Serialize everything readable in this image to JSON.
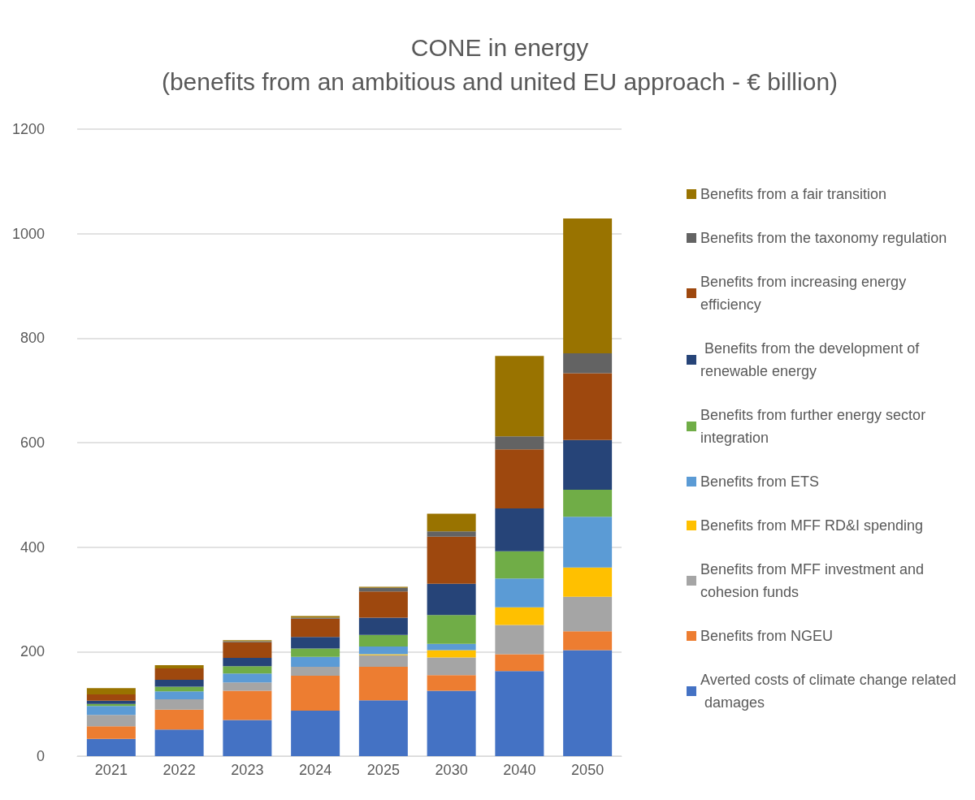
{
  "chart_data": {
    "type": "bar",
    "stacked": true,
    "title": "CONE in energy",
    "subtitle": "(benefits from an ambitious and united EU approach - € billion)",
    "categories": [
      "2021",
      "2022",
      "2023",
      "2024",
      "2025",
      "2030",
      "2040",
      "2050"
    ],
    "series": [
      {
        "name": "Averted costs of climate change related damages",
        "color": "#4472c4",
        "values": [
          33,
          51,
          69,
          87,
          107,
          125,
          163,
          203
        ]
      },
      {
        "name": "Benefits from NGEU",
        "color": "#ed7d31",
        "values": [
          24,
          38,
          56,
          67,
          64,
          30,
          32,
          36
        ]
      },
      {
        "name": "Benefits from MFF investment and cohesion funds",
        "color": "#a5a5a5",
        "values": [
          22,
          20,
          16,
          17,
          22,
          34,
          56,
          66
        ]
      },
      {
        "name": "Benefits from MFF RD&I spending",
        "color": "#ffc000",
        "values": [
          0,
          0,
          0,
          0,
          2,
          14,
          34,
          56
        ]
      },
      {
        "name": "Benefits from ETS",
        "color": "#5b9bd5",
        "values": [
          17,
          15,
          17,
          19,
          15,
          12,
          55,
          97
        ]
      },
      {
        "name": "Benefits from further energy sector integration",
        "color": "#70ad47",
        "values": [
          4,
          9,
          14,
          16,
          22,
          55,
          52,
          52
        ]
      },
      {
        "name": " Benefits from the development of renewable energy",
        "color": "#264478",
        "values": [
          6,
          13,
          16,
          22,
          33,
          60,
          82,
          95
        ]
      },
      {
        "name": "Benefits from increasing energy efficiency",
        "color": "#9e480e",
        "values": [
          12,
          22,
          30,
          35,
          50,
          90,
          113,
          128
        ]
      },
      {
        "name": "Benefits from the taxonomy regulation",
        "color": "#636363",
        "values": [
          0,
          0,
          2,
          2,
          7,
          10,
          25,
          38
        ]
      },
      {
        "name": "Benefits from a fair transition",
        "color": "#997300",
        "values": [
          12,
          6,
          2,
          3,
          2,
          34,
          154,
          258
        ]
      }
    ],
    "ylim": [
      0,
      1200
    ],
    "yticks": [
      0,
      200,
      400,
      600,
      800,
      1000,
      1200
    ],
    "grid": "y",
    "legend": "right"
  }
}
